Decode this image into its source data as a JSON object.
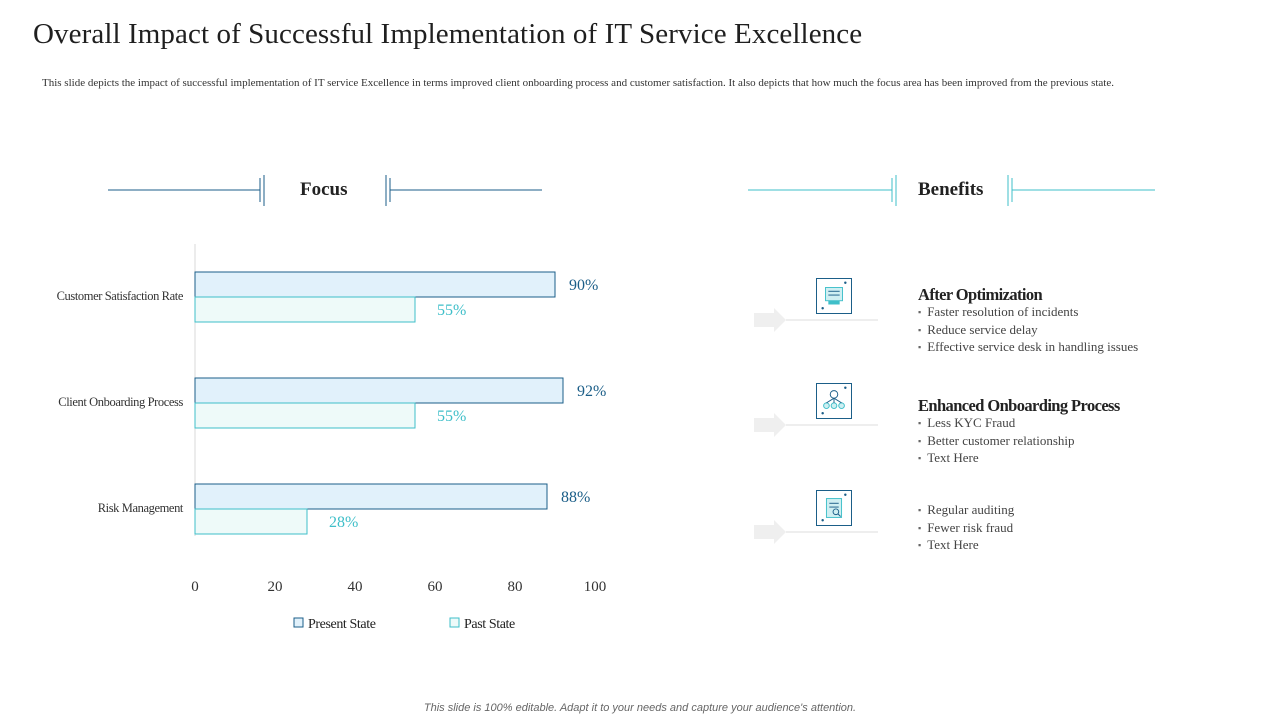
{
  "title": "Overall Impact of Successful Implementation of IT Service Excellence",
  "description": "This slide depicts the impact of successful implementation of IT service Excellence in terms improved client onboarding process and customer satisfaction.  It also depicts that how much the focus area has been improved from the previous state.",
  "focus_heading": "Focus",
  "benefits_heading": "Benefits",
  "colors": {
    "present_fill": "#e1f1fb",
    "present_stroke": "#1b5e88",
    "past_fill": "#eefaf9",
    "past_stroke": "#3fbfc9"
  },
  "chart_data": {
    "type": "bar",
    "orientation": "horizontal",
    "categories": [
      "Customer Satisfaction Rate",
      "Client Onboarding Process",
      "Risk Management"
    ],
    "series": [
      {
        "name": "Present State",
        "values": [
          90,
          92,
          88
        ],
        "labels": [
          "90%",
          "92%",
          "88%"
        ]
      },
      {
        "name": "Past State",
        "values": [
          55,
          55,
          28
        ],
        "labels": [
          "55%",
          "55%",
          "28%"
        ]
      }
    ],
    "xlim": [
      0,
      100
    ],
    "xticks": [
      0,
      20,
      40,
      60,
      80,
      100
    ],
    "xtick_labels": [
      "0",
      "20",
      "40",
      "60",
      "80",
      "100"
    ],
    "legend_position": "bottom",
    "grid": false
  },
  "benefits": [
    {
      "icon": "service-desk-icon",
      "title": "After Optimization",
      "items": [
        "Faster resolution of incidents",
        "Reduce service delay",
        "Effective service desk in handling issues"
      ]
    },
    {
      "icon": "onboarding-network-icon",
      "title": "Enhanced Onboarding Process",
      "items": [
        "Less KYC Fraud",
        "Better customer relationship",
        "Text Here"
      ]
    },
    {
      "icon": "audit-report-icon",
      "title": "",
      "items": [
        "Regular auditing",
        "Fewer risk fraud",
        "Text Here"
      ]
    }
  ],
  "footer": "This slide is 100% editable. Adapt it to your needs and capture your audience's attention."
}
